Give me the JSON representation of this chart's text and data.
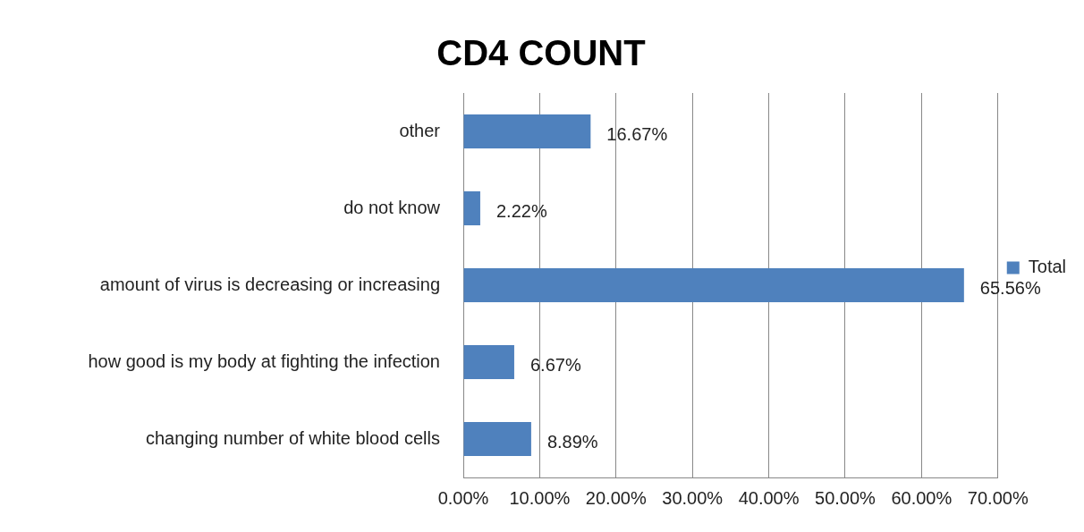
{
  "chart_data": {
    "type": "bar",
    "orientation": "horizontal",
    "title": "CD4 COUNT",
    "categories": [
      "other",
      "do not know",
      "amount of virus is decreasing or increasing",
      "how good is my body at fighting the infection",
      "changing number of white blood cells"
    ],
    "series": [
      {
        "name": "Total",
        "color": "#4f81bd",
        "values": [
          16.67,
          2.22,
          65.56,
          6.67,
          8.89
        ],
        "value_labels": [
          "16.67%",
          "2.22%",
          "65.56%",
          "6.67%",
          "8.89%"
        ]
      }
    ],
    "xlim": [
      0,
      70
    ],
    "xticks": [
      {
        "value": 0,
        "label": "0.00%"
      },
      {
        "value": 10,
        "label": "10.00%"
      },
      {
        "value": 20,
        "label": "20.00%"
      },
      {
        "value": 30,
        "label": "30.00%"
      },
      {
        "value": 40,
        "label": "40.00%"
      },
      {
        "value": 50,
        "label": "50.00%"
      },
      {
        "value": 60,
        "label": "60.00%"
      },
      {
        "value": 70,
        "label": "70.00%"
      }
    ],
    "grid": "x",
    "legend": "right"
  }
}
